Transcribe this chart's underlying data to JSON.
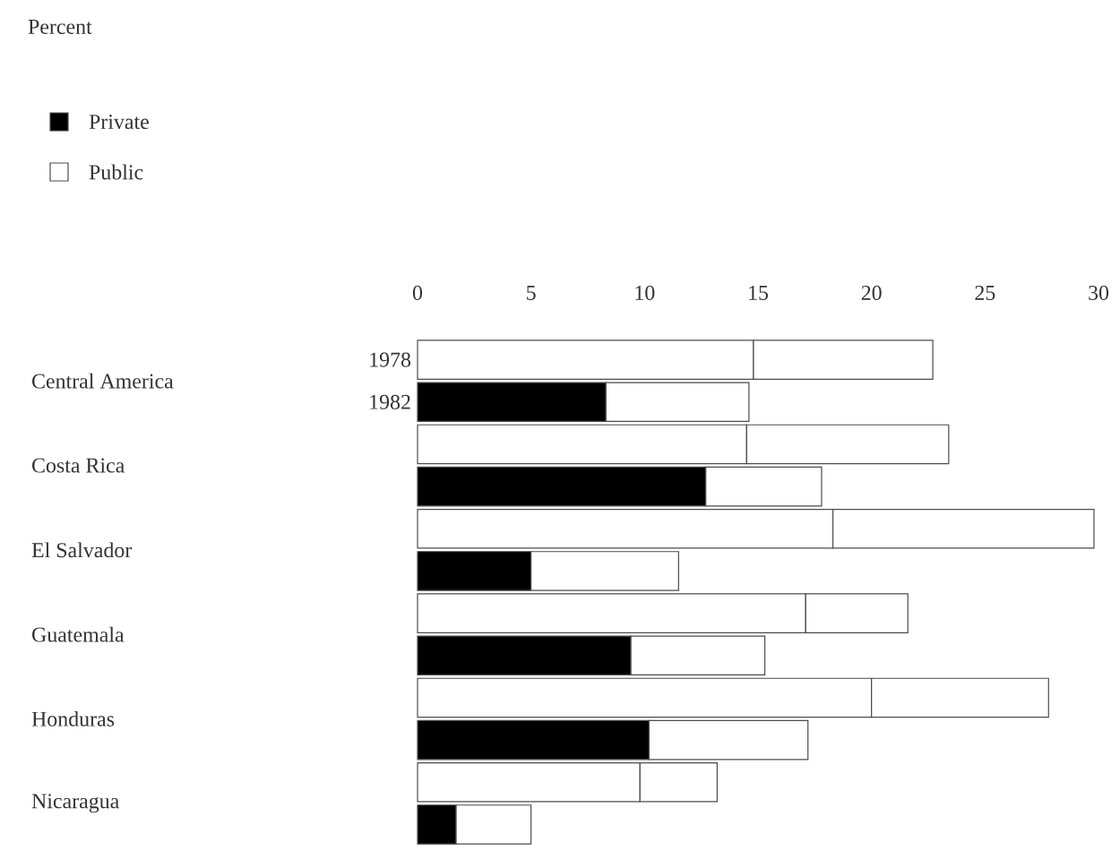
{
  "chart_data": {
    "type": "bar",
    "orientation": "horizontal",
    "stacked": true,
    "title": "Percent",
    "categories": [
      "1978",
      "1982",
      null,
      null,
      null,
      null,
      null,
      null,
      null,
      null,
      null,
      null
    ],
    "series": [
      {
        "name": "Private",
        "color": "#000000",
        "colors": [
          "#ffffff",
          "#000000",
          "#ffffff",
          "#000000",
          "#ffffff",
          "#000000",
          "#ffffff",
          "#000000",
          "#ffffff",
          "#000000",
          "#ffffff",
          "#000000"
        ],
        "values": [
          14.8,
          8.3,
          14.5,
          12.7,
          18.3,
          5.0,
          17.1,
          9.4,
          20.0,
          10.2,
          9.8,
          1.7
        ]
      },
      {
        "name": "Public",
        "color": "#ffffff",
        "values": [
          7.9,
          6.3,
          8.9,
          5.1,
          11.5,
          6.5,
          4.5,
          5.9,
          7.8,
          7.0,
          3.4,
          3.3
        ]
      }
    ],
    "xlim": [
      0,
      30
    ],
    "xticks": [
      0,
      5,
      10,
      15,
      20,
      25,
      30
    ],
    "legend": "top left",
    "annotations": [
      "Central America",
      "Costa Rica",
      "El Salvador",
      "Guatemala",
      "Honduras",
      "Nicaragua"
    ]
  }
}
